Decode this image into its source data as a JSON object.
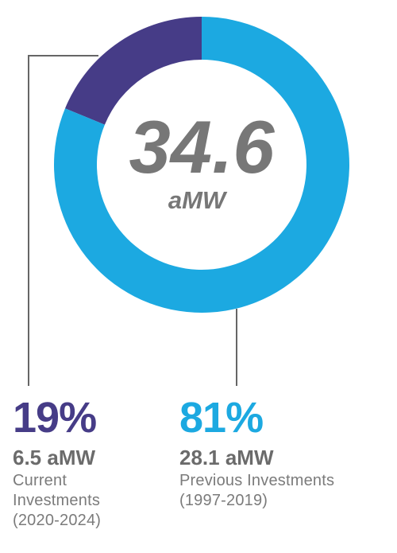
{
  "colors": {
    "current": "#463c87",
    "previous": "#1ca9e1",
    "center_text": "#777777",
    "leader_line": "#666666"
  },
  "chart_data": {
    "type": "pie",
    "total": {
      "value": 34.6,
      "unit": "aMW",
      "value_label": "34.6",
      "unit_label": "aMW"
    },
    "series": [
      {
        "key": "current",
        "value": 6.5,
        "percent": 19,
        "percent_label": "19%",
        "amount_label": "6.5 aMW",
        "description_lines": [
          "Current",
          "Investments",
          "(2020-2024)"
        ]
      },
      {
        "key": "previous",
        "value": 28.1,
        "percent": 81,
        "percent_label": "81%",
        "amount_label": "28.1 aMW",
        "description_lines": [
          "Previous Investments",
          "(1997-2019)"
        ]
      }
    ]
  }
}
